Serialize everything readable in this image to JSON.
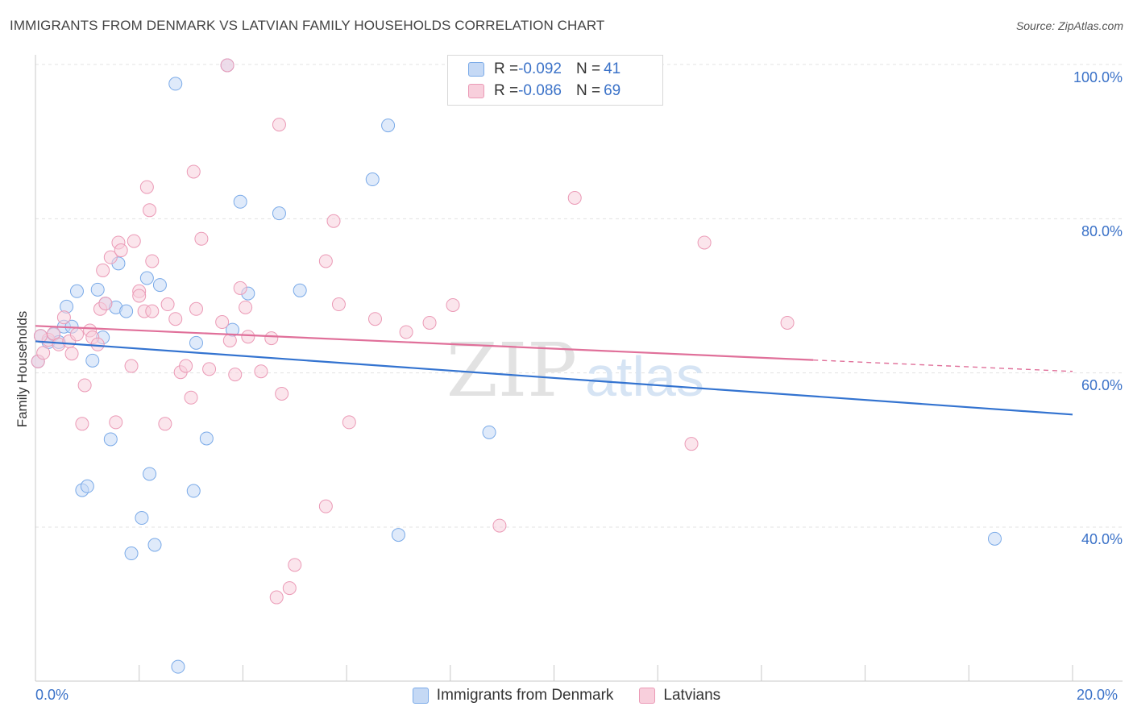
{
  "title": "IMMIGRANTS FROM DENMARK VS LATVIAN FAMILY HOUSEHOLDS CORRELATION CHART",
  "source": "Source: ZipAtlas.com",
  "watermark": {
    "zip": "ZIP",
    "atlas": "atlas"
  },
  "legend": {
    "row1": {
      "r_label": "R = ",
      "r_value": "-0.092",
      "n_label": "N = ",
      "n_value": "41"
    },
    "row2": {
      "r_label": "R = ",
      "r_value": "-0.086",
      "n_label": "N = ",
      "n_value": "69"
    }
  },
  "chart_data": {
    "type": "scatter",
    "title": "IMMIGRANTS FROM DENMARK VS LATVIAN FAMILY HOUSEHOLDS CORRELATION CHART",
    "xlabel": "",
    "ylabel": "Family Households",
    "xlim": [
      0,
      20
    ],
    "ylim": [
      20,
      102
    ],
    "x_tick_labels": {
      "min": "0.0%",
      "max": "20.0%"
    },
    "y_ticks": [
      {
        "value": 40,
        "label": "40.0%"
      },
      {
        "value": 60,
        "label": "60.0%"
      },
      {
        "value": 80,
        "label": "80.0%"
      },
      {
        "value": 100,
        "label": "100.0%"
      }
    ],
    "grid": true,
    "series": [
      {
        "name": "Immigrants from Denmark",
        "color": "#7aaae8",
        "fill": "#c5d9f5",
        "line_color": "#3373d0",
        "trend": {
          "x": [
            0,
            20
          ],
          "y": [
            64.1,
            54.6
          ],
          "dashed_from": null
        },
        "points": [
          [
            0.1,
            64.8
          ],
          [
            0.25,
            64.0
          ],
          [
            0.35,
            65.0
          ],
          [
            0.45,
            64.0
          ],
          [
            0.55,
            66.0
          ],
          [
            0.6,
            68.6
          ],
          [
            0.7,
            66.0
          ],
          [
            0.8,
            70.6
          ],
          [
            0.9,
            44.8
          ],
          [
            1.0,
            45.3
          ],
          [
            1.1,
            61.6
          ],
          [
            1.2,
            70.8
          ],
          [
            1.3,
            64.6
          ],
          [
            1.35,
            69.0
          ],
          [
            1.45,
            51.4
          ],
          [
            1.55,
            68.5
          ],
          [
            1.6,
            74.2
          ],
          [
            1.75,
            68.0
          ],
          [
            1.85,
            36.6
          ],
          [
            2.05,
            41.2
          ],
          [
            2.15,
            72.3
          ],
          [
            2.2,
            46.9
          ],
          [
            2.3,
            37.7
          ],
          [
            2.4,
            71.4
          ],
          [
            2.7,
            97.5
          ],
          [
            2.75,
            21.9
          ],
          [
            3.05,
            44.7
          ],
          [
            3.1,
            63.9
          ],
          [
            3.3,
            51.5
          ],
          [
            3.7,
            99.9
          ],
          [
            3.8,
            65.6
          ],
          [
            3.95,
            82.2
          ],
          [
            4.1,
            70.3
          ],
          [
            4.7,
            80.7
          ],
          [
            5.1,
            70.7
          ],
          [
            6.5,
            85.1
          ],
          [
            6.8,
            92.1
          ],
          [
            7.0,
            39.0
          ],
          [
            8.75,
            52.3
          ],
          [
            18.5,
            38.5
          ],
          [
            0.05,
            61.5
          ]
        ]
      },
      {
        "name": "Latvians",
        "color": "#eb9ab6",
        "fill": "#f8cfdc",
        "line_color": "#e0709a",
        "trend": {
          "x": [
            0,
            20
          ],
          "y": [
            66.1,
            60.2
          ],
          "dashed_from": 15
        },
        "points": [
          [
            0.05,
            61.5
          ],
          [
            0.15,
            62.6
          ],
          [
            0.25,
            64.3
          ],
          [
            0.35,
            65.1
          ],
          [
            0.45,
            63.7
          ],
          [
            0.55,
            67.2
          ],
          [
            0.65,
            64.1
          ],
          [
            0.7,
            62.5
          ],
          [
            0.8,
            65.0
          ],
          [
            0.9,
            53.4
          ],
          [
            0.95,
            58.4
          ],
          [
            1.05,
            65.5
          ],
          [
            1.1,
            64.6
          ],
          [
            1.2,
            63.7
          ],
          [
            1.25,
            68.3
          ],
          [
            1.3,
            73.3
          ],
          [
            1.45,
            75.0
          ],
          [
            1.55,
            53.6
          ],
          [
            1.6,
            76.9
          ],
          [
            1.65,
            75.9
          ],
          [
            1.85,
            60.9
          ],
          [
            1.9,
            77.1
          ],
          [
            2.0,
            70.6
          ],
          [
            2.1,
            68.0
          ],
          [
            2.15,
            84.1
          ],
          [
            2.2,
            81.1
          ],
          [
            2.25,
            74.5
          ],
          [
            2.25,
            68.0
          ],
          [
            2.5,
            53.4
          ],
          [
            2.55,
            68.9
          ],
          [
            2.7,
            67.0
          ],
          [
            2.8,
            60.1
          ],
          [
            2.9,
            60.9
          ],
          [
            3.0,
            56.8
          ],
          [
            3.05,
            86.1
          ],
          [
            3.1,
            68.3
          ],
          [
            3.2,
            77.4
          ],
          [
            3.35,
            60.5
          ],
          [
            3.6,
            66.6
          ],
          [
            3.75,
            64.2
          ],
          [
            3.85,
            59.8
          ],
          [
            3.95,
            71.0
          ],
          [
            4.05,
            68.5
          ],
          [
            4.1,
            64.7
          ],
          [
            4.35,
            60.2
          ],
          [
            4.55,
            64.5
          ],
          [
            4.65,
            30.9
          ],
          [
            4.7,
            92.2
          ],
          [
            4.75,
            57.3
          ],
          [
            4.9,
            32.1
          ],
          [
            5.0,
            35.1
          ],
          [
            5.6,
            42.7
          ],
          [
            5.6,
            74.5
          ],
          [
            5.75,
            79.7
          ],
          [
            5.85,
            68.9
          ],
          [
            6.05,
            53.6
          ],
          [
            6.55,
            67.0
          ],
          [
            7.15,
            65.3
          ],
          [
            7.6,
            66.5
          ],
          [
            8.05,
            68.8
          ],
          [
            8.95,
            40.2
          ],
          [
            10.4,
            82.7
          ],
          [
            12.65,
            50.8
          ],
          [
            12.9,
            76.9
          ],
          [
            14.5,
            66.5
          ],
          [
            3.7,
            99.9
          ],
          [
            0.1,
            64.8
          ],
          [
            1.35,
            69.0
          ],
          [
            2.0,
            70.0
          ]
        ]
      }
    ]
  },
  "bottom_legend": [
    "Immigrants from Denmark",
    "Latvians"
  ]
}
